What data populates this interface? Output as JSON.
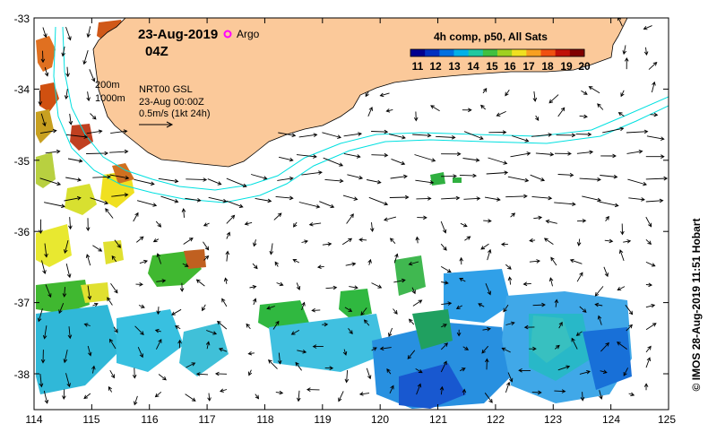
{
  "map": {
    "date": "23-Aug-2019",
    "time": "04Z",
    "argo_label": "Argo",
    "colorbar_title": "4h comp, p50, All Sats",
    "colorbar_ticks": [
      "11",
      "12",
      "13",
      "14",
      "15",
      "16",
      "17",
      "18",
      "19",
      "20"
    ],
    "isobath_200": "200m",
    "isobath_1000": "1000m",
    "product": "NRT00 GSL",
    "product_time": "23-Aug 00:00Z",
    "vector_scale": "0.5m/s (1kt 24h)",
    "credit": "© IMOS 28-Aug-2019 11:51 Hobart",
    "x_ticks": [
      "114",
      "115",
      "116",
      "117",
      "118",
      "119",
      "120",
      "121",
      "122",
      "123",
      "124",
      "125"
    ],
    "y_ticks": [
      "-33",
      "-34",
      "-35",
      "-36",
      "-37",
      "-38"
    ],
    "colors": {
      "land": "#fbc99a",
      "isobath": "#00e0e0",
      "argo": "#ff00ff"
    }
  }
}
